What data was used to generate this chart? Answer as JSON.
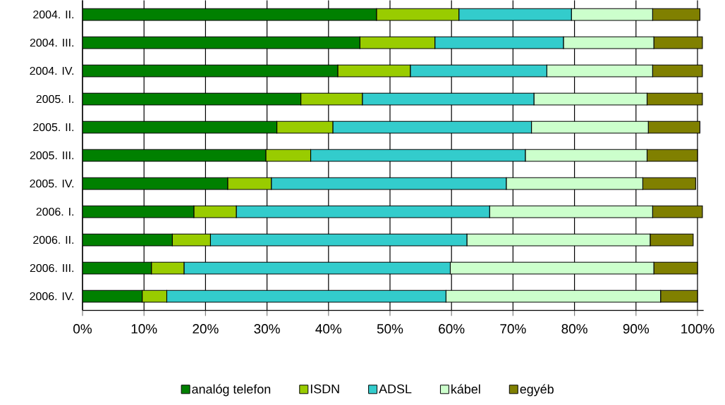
{
  "chart_data": {
    "type": "bar",
    "orientation": "horizontal",
    "stacked": true,
    "grid": "x",
    "legend": "bottom",
    "categories": [
      "2004. II.",
      "2004. III.",
      "2004. IV.",
      "2005. I.",
      "2005. II.",
      "2005. III.",
      "2005. IV.",
      "2006. I.",
      "2006. II.",
      "2006. III.",
      "2006. IV."
    ],
    "series": [
      {
        "name": "analóg telefon",
        "color": "#008000",
        "values": [
          47.8,
          45.1,
          41.5,
          35.5,
          31.6,
          29.8,
          23.6,
          18.1,
          14.6,
          11.2,
          9.7
        ]
      },
      {
        "name": "ISDN",
        "color": "#99cc00",
        "values": [
          13.4,
          12.2,
          11.8,
          10.0,
          9.1,
          7.3,
          7.1,
          6.9,
          6.2,
          5.3,
          4.0
        ]
      },
      {
        "name": "ADSL",
        "color": "#33cccc",
        "values": [
          18.3,
          20.9,
          22.2,
          27.9,
          32.3,
          34.9,
          38.2,
          41.2,
          41.7,
          43.3,
          45.4
        ]
      },
      {
        "name": "kábel",
        "color": "#ccffcc",
        "values": [
          13.2,
          14.7,
          17.2,
          18.4,
          19.0,
          19.8,
          22.2,
          26.5,
          29.8,
          33.1,
          34.9
        ]
      },
      {
        "name": "egyéb",
        "color": "#808000",
        "values": [
          7.7,
          7.9,
          8.1,
          9.0,
          8.4,
          8.2,
          8.6,
          8.1,
          7.0,
          7.1,
          6.0
        ]
      }
    ],
    "xlim": [
      0,
      101
    ],
    "xticks": [
      {
        "value": 0,
        "label": "0%"
      },
      {
        "value": 10,
        "label": "10%"
      },
      {
        "value": 20,
        "label": "20%"
      },
      {
        "value": 30,
        "label": "30%"
      },
      {
        "value": 40,
        "label": "40%"
      },
      {
        "value": 50,
        "label": "50%"
      },
      {
        "value": 60,
        "label": "60%"
      },
      {
        "value": 70,
        "label": "70%"
      },
      {
        "value": 80,
        "label": "80%"
      },
      {
        "value": 90,
        "label": "90%"
      },
      {
        "value": 100,
        "label": "100%"
      }
    ]
  }
}
